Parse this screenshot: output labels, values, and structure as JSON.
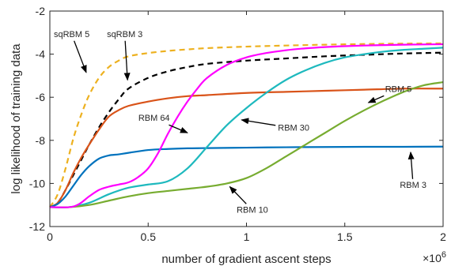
{
  "chart_data": {
    "type": "line",
    "xlabel": "number of gradient ascent steps",
    "ylabel": "log likelihood of training data",
    "x_multiplier": "×10",
    "x_exponent": "6",
    "xlim": [
      0,
      2000000
    ],
    "ylim": [
      -12,
      -2
    ],
    "xticks": [
      0,
      500000,
      1000000,
      1500000,
      2000000
    ],
    "xtick_labels": [
      "0",
      "0.5",
      "1",
      "1.5",
      "2"
    ],
    "yticks": [
      -12,
      -10,
      -8,
      -6,
      -4,
      -2
    ],
    "ytick_labels": [
      "-12",
      "-10",
      "-8",
      "-6",
      "-4",
      "-2"
    ],
    "grid": false,
    "legend": "none",
    "series": [
      {
        "name": "sqRBM 5",
        "color": "#EDB120",
        "dash": "dashed",
        "x": [
          0,
          40000,
          80000,
          120000,
          160000,
          200000,
          250000,
          300000,
          350000,
          400000,
          500000,
          600000,
          700000,
          800000,
          1000000,
          1200000,
          1400000,
          1600000,
          1800000,
          2000000
        ],
        "y": [
          -11.1,
          -10.5,
          -9.3,
          -7.9,
          -6.8,
          -5.9,
          -5.1,
          -4.6,
          -4.3,
          -4.1,
          -3.95,
          -3.85,
          -3.78,
          -3.72,
          -3.65,
          -3.6,
          -3.56,
          -3.53,
          -3.51,
          -3.5
        ]
      },
      {
        "name": "sqRBM 3",
        "color": "#000000",
        "dash": "dashed",
        "x": [
          0,
          40000,
          80000,
          120000,
          160000,
          200000,
          250000,
          300000,
          350000,
          400000,
          500000,
          600000,
          700000,
          800000,
          1000000,
          1200000,
          1400000,
          1600000,
          1800000,
          2000000
        ],
        "y": [
          -11.1,
          -10.9,
          -10.3,
          -9.6,
          -8.9,
          -8.2,
          -7.4,
          -6.7,
          -6.1,
          -5.6,
          -5.1,
          -4.8,
          -4.6,
          -4.45,
          -4.3,
          -4.2,
          -4.1,
          -4.03,
          -3.97,
          -3.93
        ]
      },
      {
        "name": "RBM 64",
        "color": "#D95319",
        "dash": "solid",
        "x": [
          0,
          40000,
          80000,
          120000,
          160000,
          200000,
          250000,
          300000,
          350000,
          400000,
          500000,
          600000,
          700000,
          800000,
          1000000,
          1200000,
          1400000,
          1600000,
          1800000,
          2000000
        ],
        "y": [
          -11.1,
          -10.9,
          -10.3,
          -9.5,
          -8.8,
          -8.2,
          -7.5,
          -6.9,
          -6.6,
          -6.4,
          -6.2,
          -6.05,
          -5.95,
          -5.9,
          -5.8,
          -5.75,
          -5.7,
          -5.65,
          -5.6,
          -5.6
        ]
      },
      {
        "name": "RBM 5",
        "color": "#0072BD",
        "dash": "solid",
        "x": [
          0,
          40000,
          80000,
          120000,
          160000,
          200000,
          250000,
          300000,
          350000,
          400000,
          500000,
          600000,
          700000,
          800000,
          1000000,
          1200000,
          1400000,
          1600000,
          1800000,
          2000000
        ],
        "y": [
          -11.1,
          -10.95,
          -10.6,
          -10.1,
          -9.6,
          -9.2,
          -8.85,
          -8.7,
          -8.65,
          -8.58,
          -8.45,
          -8.4,
          -8.37,
          -8.36,
          -8.34,
          -8.32,
          -8.31,
          -8.3,
          -8.3,
          -8.29
        ]
      },
      {
        "name": "RBM 30",
        "color": "#1EB9BE",
        "dash": "solid",
        "x": [
          0,
          100000,
          200000,
          300000,
          400000,
          500000,
          600000,
          700000,
          800000,
          900000,
          1000000,
          1100000,
          1200000,
          1300000,
          1400000,
          1500000,
          1600000,
          1700000,
          1800000,
          1900000,
          2000000
        ],
        "y": [
          -11.1,
          -11.1,
          -10.9,
          -10.5,
          -10.2,
          -10.05,
          -9.9,
          -9.3,
          -8.3,
          -7.3,
          -6.5,
          -5.8,
          -5.2,
          -4.75,
          -4.4,
          -4.15,
          -4.0,
          -3.88,
          -3.8,
          -3.75,
          -3.7
        ]
      },
      {
        "name": "RBM 10",
        "color": "#77AC30",
        "dash": "solid",
        "x": [
          0,
          100000,
          200000,
          300000,
          400000,
          500000,
          600000,
          700000,
          800000,
          900000,
          1000000,
          1100000,
          1200000,
          1300000,
          1400000,
          1500000,
          1600000,
          1700000,
          1800000,
          1900000,
          2000000
        ],
        "y": [
          -11.1,
          -11.1,
          -11.0,
          -10.8,
          -10.6,
          -10.45,
          -10.35,
          -10.25,
          -10.15,
          -10.0,
          -9.75,
          -9.3,
          -8.75,
          -8.2,
          -7.65,
          -7.1,
          -6.6,
          -6.15,
          -5.75,
          -5.45,
          -5.3
        ]
      },
      {
        "name": "RBM 3",
        "color": "#FF00FF",
        "dash": "solid",
        "x": [
          0,
          100000,
          150000,
          200000,
          250000,
          300000,
          350000,
          400000,
          450000,
          500000,
          550000,
          600000,
          650000,
          700000,
          750000,
          800000,
          900000,
          1000000,
          1100000,
          1200000,
          1300000,
          1400000,
          1500000,
          1600000,
          1700000,
          1800000,
          1900000,
          2000000
        ],
        "y": [
          -11.1,
          -11.1,
          -10.95,
          -10.6,
          -10.3,
          -10.15,
          -10.05,
          -9.95,
          -9.7,
          -9.3,
          -8.6,
          -7.7,
          -6.9,
          -6.2,
          -5.6,
          -5.1,
          -4.5,
          -4.15,
          -3.95,
          -3.82,
          -3.73,
          -3.67,
          -3.63,
          -3.6,
          -3.58,
          -3.56,
          -3.55,
          -3.54
        ]
      }
    ],
    "annotations": [
      {
        "text": "sqRBM 5",
        "label_x": 20000,
        "label_y": -3.2,
        "tip_x": 185000,
        "tip_y": -4.85
      },
      {
        "text": "sqRBM 3",
        "label_x": 290000,
        "label_y": -3.2,
        "tip_x": 395000,
        "tip_y": -5.2
      },
      {
        "text": "RBM 5",
        "label_x": 1705000,
        "label_y": -5.75,
        "tip_x": 1620000,
        "tip_y": -6.25
      },
      {
        "text": "RBM 64",
        "label_x": 450000,
        "label_y": -7.1,
        "tip_x": 700000,
        "tip_y": -7.65
      },
      {
        "text": "RBM 30",
        "label_x": 1160000,
        "label_y": -7.55,
        "tip_x": 975000,
        "tip_y": -7.05
      },
      {
        "text": "RBM 3",
        "label_x": 1780000,
        "label_y": -10.2,
        "tip_x": 1835000,
        "tip_y": -8.55
      },
      {
        "text": "RBM 10",
        "label_x": 950000,
        "label_y": -11.35,
        "tip_x": 915000,
        "tip_y": -10.15
      }
    ]
  }
}
